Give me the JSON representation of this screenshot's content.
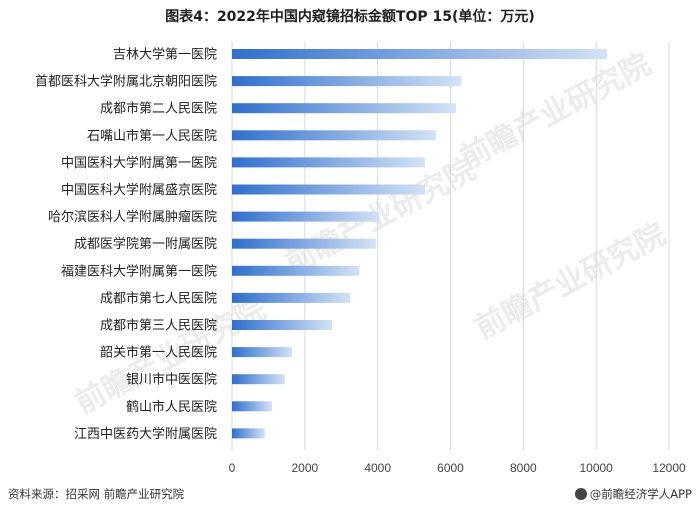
{
  "header": {
    "title": "图表4：2022年中国内窥镜招标金额TOP 15(单位：万元)"
  },
  "footer": {
    "source": "资料来源：招采网 前瞻产业研究院",
    "brand": "@前瞻经济学人APP"
  },
  "watermark": {
    "text": "前瞻产业研究院"
  },
  "colors": {
    "bar_start": "#2e6fcf",
    "bar_end": "#d3e2f6",
    "grid": "#d9d9d9"
  },
  "chart_data": {
    "type": "bar",
    "orientation": "horizontal",
    "title": "图表4：2022年中国内窥镜招标金额TOP 15(单位：万元)",
    "xlabel": "",
    "ylabel": "",
    "xlim": [
      0,
      12000
    ],
    "xticks": [
      "0",
      "2000",
      "4000",
      "6000",
      "8000",
      "10000",
      "12000"
    ],
    "grid": "vertical",
    "categories": [
      "吉林大学第一医院",
      "首都医科大学附属北京朝阳医院",
      "成都市第二人民医院",
      "石嘴山市第一人民医院",
      "中国医科大学附属第一医院",
      "中国医科大学附属盛京医院",
      "哈尔滨医科人学附属肿瘤医院",
      "成都医学院第一附属医院",
      "福建医科大学附属第一医院",
      "成都市第七人民医院",
      "成都市第三人民医院",
      "韶关市第一人民医院",
      "银川市中医医院",
      "鹤山市人民医院",
      "江西中医药大学附属医院"
    ],
    "values": [
      10300,
      6300,
      6150,
      5600,
      5300,
      5300,
      4050,
      3950,
      3500,
      3250,
      2750,
      1650,
      1450,
      1100,
      900
    ]
  }
}
